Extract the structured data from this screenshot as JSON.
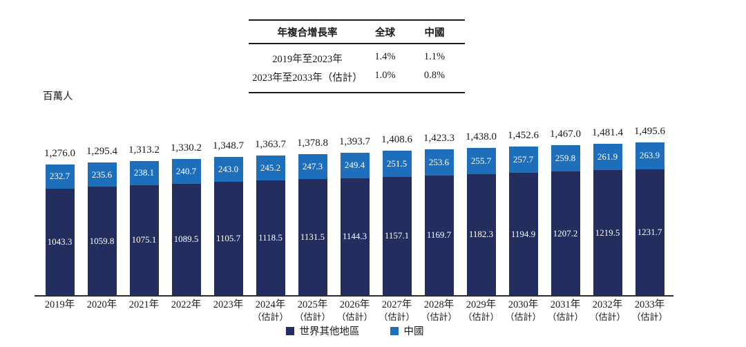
{
  "table": {
    "headers": [
      "年複合增長率",
      "全球",
      "中國"
    ],
    "rows": [
      {
        "label": "2019年至2023年",
        "global": "1.4%",
        "china": "1.1%"
      },
      {
        "label": "2023年至2033年（估計）",
        "global": "1.0%",
        "china": "0.8%"
      }
    ]
  },
  "unit_label": "百萬人",
  "chart_data": {
    "type": "bar",
    "stacked": true,
    "title": "",
    "ylabel": "百萬人",
    "xlabel": "",
    "legend_position": "bottom",
    "grid": false,
    "categories": [
      "2019年",
      "2020年",
      "2021年",
      "2022年",
      "2023年",
      "2024年",
      "2025年",
      "2026年",
      "2027年",
      "2028年",
      "2029年",
      "2030年",
      "2031年",
      "2032年",
      "2033年"
    ],
    "estimate_note": "（估計）",
    "estimate_from_index": 5,
    "series": [
      {
        "name": "世界其他地區",
        "color": "#232d5e",
        "values": [
          1043.3,
          1059.8,
          1075.1,
          1089.5,
          1105.7,
          1118.5,
          1131.5,
          1144.3,
          1157.1,
          1169.7,
          1182.3,
          1194.9,
          1207.2,
          1219.5,
          1231.7
        ],
        "labels": [
          "1043.3",
          "1059.8",
          "1075.1",
          "1089.5",
          "1105.7",
          "1118.5",
          "1131.5",
          "1144.3",
          "1157.1",
          "1169.7",
          "1182.3",
          "1194.9",
          "1207.2",
          "1219.5",
          "1231.7"
        ]
      },
      {
        "name": "中國",
        "color": "#1e6fbb",
        "values": [
          232.7,
          235.6,
          238.1,
          240.7,
          243.0,
          245.2,
          247.3,
          249.4,
          251.5,
          253.6,
          255.7,
          257.7,
          259.8,
          261.9,
          263.9
        ],
        "labels": [
          "232.7",
          "235.6",
          "238.1",
          "240.7",
          "243.0",
          "245.2",
          "247.3",
          "249.4",
          "251.5",
          "253.6",
          "255.7",
          "257.7",
          "259.8",
          "261.9",
          "263.9"
        ]
      }
    ],
    "totals": [
      1276.0,
      1295.4,
      1313.2,
      1330.2,
      1348.7,
      1363.7,
      1378.8,
      1393.7,
      1408.6,
      1423.3,
      1438.0,
      1452.6,
      1467.0,
      1481.4,
      1495.6
    ],
    "total_labels": [
      "1,276.0",
      "1,295.4",
      "1,313.2",
      "1,330.2",
      "1,348.7",
      "1,363.7",
      "1,378.8",
      "1,393.7",
      "1,408.6",
      "1,423.3",
      "1,438.0",
      "1,452.6",
      "1,467.0",
      "1,481.4",
      "1,495.6"
    ],
    "ylim": [
      0,
      1600
    ]
  }
}
